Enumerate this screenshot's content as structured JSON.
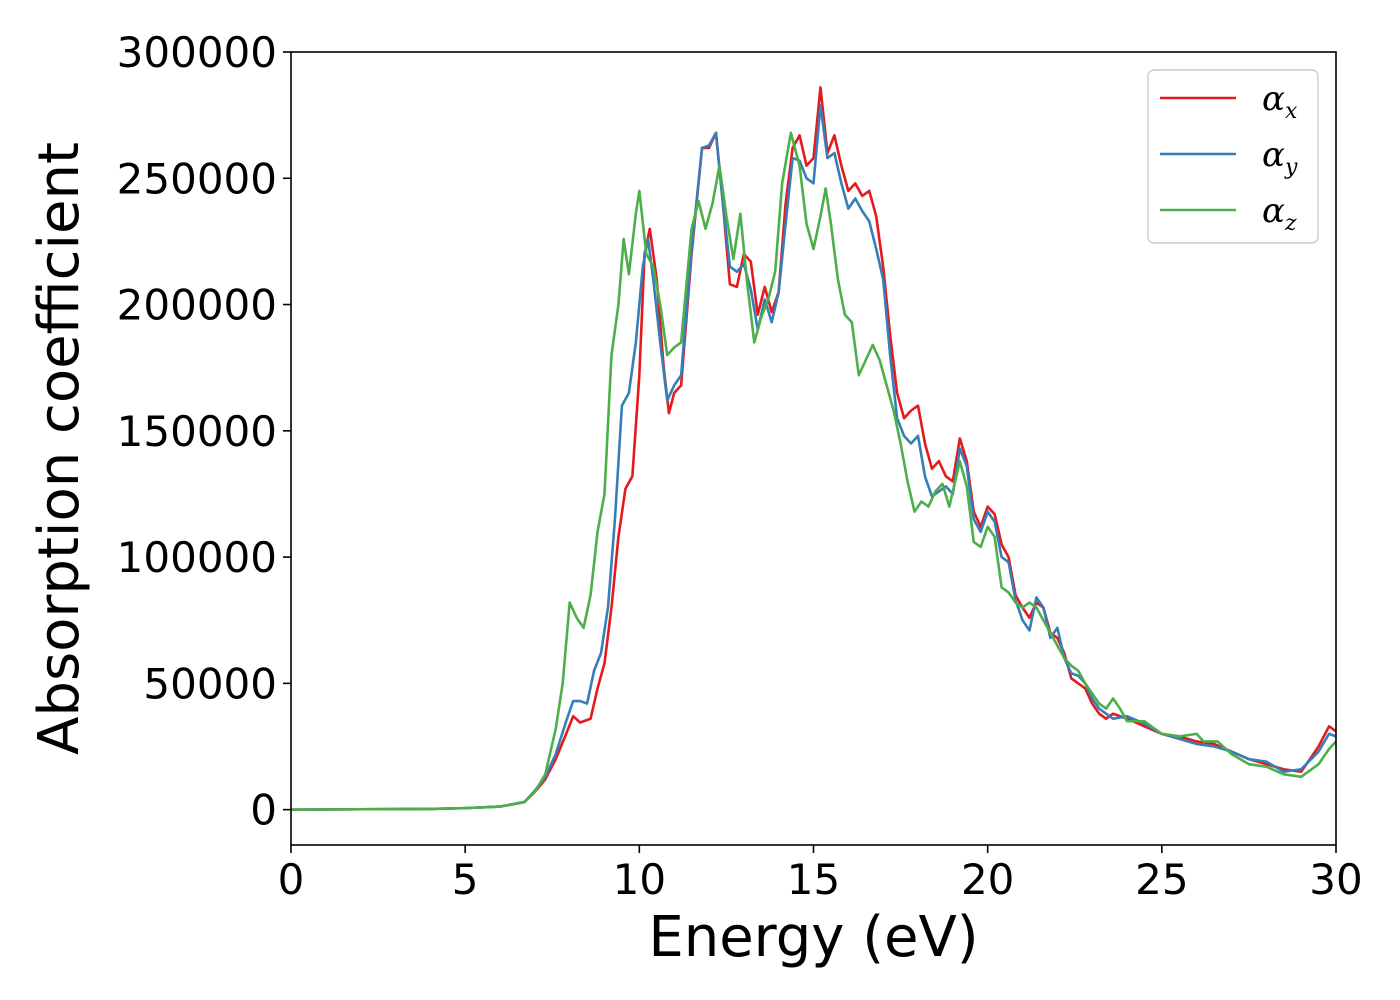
{
  "chart_data": {
    "type": "line",
    "title": "",
    "xlabel": "Energy (eV)",
    "ylabel": "Absorption coefficient",
    "xlim": [
      0,
      30
    ],
    "ylim": [
      -14000,
      300000
    ],
    "xticks": [
      0,
      5,
      10,
      15,
      20,
      25,
      30
    ],
    "yticks": [
      0,
      50000,
      100000,
      150000,
      200000,
      250000,
      300000
    ],
    "xtick_labels": [
      "0",
      "5",
      "10",
      "15",
      "20",
      "25",
      "30"
    ],
    "ytick_labels": [
      "0",
      "50000",
      "100000",
      "150000",
      "200000",
      "250000",
      "300000"
    ],
    "grid": false,
    "legend_position": "top-right",
    "series": [
      {
        "name": "αx",
        "symbol": "α",
        "subscript": "x",
        "color": "#e41a1c",
        "points": [
          [
            0,
            0
          ],
          [
            2,
            150
          ],
          [
            4,
            300
          ],
          [
            5,
            600
          ],
          [
            6,
            1200
          ],
          [
            6.7,
            3000
          ],
          [
            7,
            7000
          ],
          [
            7.3,
            12000
          ],
          [
            7.6,
            20000
          ],
          [
            7.9,
            30000
          ],
          [
            8.1,
            37000
          ],
          [
            8.3,
            34500
          ],
          [
            8.6,
            36000
          ],
          [
            8.8,
            48000
          ],
          [
            9,
            58000
          ],
          [
            9.2,
            80000
          ],
          [
            9.4,
            108000
          ],
          [
            9.6,
            127000
          ],
          [
            9.8,
            132000
          ],
          [
            10,
            172000
          ],
          [
            10.15,
            220000
          ],
          [
            10.3,
            230000
          ],
          [
            10.5,
            210000
          ],
          [
            10.7,
            175000
          ],
          [
            10.85,
            157000
          ],
          [
            11,
            165000
          ],
          [
            11.2,
            168000
          ],
          [
            11.5,
            220000
          ],
          [
            11.8,
            262000
          ],
          [
            12,
            262000
          ],
          [
            12.2,
            268000
          ],
          [
            12.4,
            240000
          ],
          [
            12.6,
            208000
          ],
          [
            12.8,
            207000
          ],
          [
            13,
            220000
          ],
          [
            13.2,
            217000
          ],
          [
            13.4,
            196000
          ],
          [
            13.6,
            207000
          ],
          [
            13.8,
            197000
          ],
          [
            14,
            205000
          ],
          [
            14.2,
            240000
          ],
          [
            14.4,
            262000
          ],
          [
            14.6,
            267000
          ],
          [
            14.8,
            255000
          ],
          [
            15,
            258000
          ],
          [
            15.2,
            286000
          ],
          [
            15.4,
            260000
          ],
          [
            15.6,
            267000
          ],
          [
            15.8,
            255000
          ],
          [
            16,
            245000
          ],
          [
            16.2,
            248000
          ],
          [
            16.4,
            243000
          ],
          [
            16.6,
            245000
          ],
          [
            16.8,
            235000
          ],
          [
            17,
            215000
          ],
          [
            17.2,
            188000
          ],
          [
            17.4,
            165000
          ],
          [
            17.6,
            155000
          ],
          [
            17.8,
            158000
          ],
          [
            18,
            160000
          ],
          [
            18.2,
            145000
          ],
          [
            18.4,
            135000
          ],
          [
            18.6,
            138000
          ],
          [
            18.8,
            132000
          ],
          [
            19,
            130000
          ],
          [
            19.2,
            147000
          ],
          [
            19.4,
            138000
          ],
          [
            19.6,
            118000
          ],
          [
            19.8,
            112000
          ],
          [
            20,
            120000
          ],
          [
            20.2,
            117000
          ],
          [
            20.4,
            105000
          ],
          [
            20.6,
            100000
          ],
          [
            20.8,
            85000
          ],
          [
            21,
            80000
          ],
          [
            21.2,
            76000
          ],
          [
            21.4,
            82000
          ],
          [
            21.6,
            80000
          ],
          [
            21.8,
            70000
          ],
          [
            22,
            68000
          ],
          [
            22.2,
            62000
          ],
          [
            22.4,
            52000
          ],
          [
            22.6,
            50000
          ],
          [
            22.8,
            48000
          ],
          [
            23,
            42000
          ],
          [
            23.2,
            38000
          ],
          [
            23.4,
            36000
          ],
          [
            23.6,
            38000
          ],
          [
            24,
            36000
          ],
          [
            24.5,
            33000
          ],
          [
            25,
            30000
          ],
          [
            25.5,
            29000
          ],
          [
            26,
            27000
          ],
          [
            26.5,
            26000
          ],
          [
            27,
            23000
          ],
          [
            27.5,
            20000
          ],
          [
            28,
            18000
          ],
          [
            28.5,
            16000
          ],
          [
            29,
            15000
          ],
          [
            29.5,
            25000
          ],
          [
            29.8,
            33000
          ],
          [
            30,
            31000
          ]
        ]
      },
      {
        "name": "αy",
        "symbol": "α",
        "subscript": "y",
        "color": "#377eb8",
        "points": [
          [
            0,
            0
          ],
          [
            2,
            150
          ],
          [
            4,
            300
          ],
          [
            5,
            600
          ],
          [
            6,
            1200
          ],
          [
            6.7,
            3000
          ],
          [
            7,
            7500
          ],
          [
            7.3,
            13000
          ],
          [
            7.6,
            22000
          ],
          [
            7.9,
            35000
          ],
          [
            8.1,
            43000
          ],
          [
            8.3,
            43000
          ],
          [
            8.5,
            42000
          ],
          [
            8.7,
            55000
          ],
          [
            8.9,
            62000
          ],
          [
            9.1,
            80000
          ],
          [
            9.3,
            115000
          ],
          [
            9.5,
            160000
          ],
          [
            9.7,
            165000
          ],
          [
            9.9,
            185000
          ],
          [
            10.1,
            215000
          ],
          [
            10.25,
            226000
          ],
          [
            10.4,
            210000
          ],
          [
            10.6,
            185000
          ],
          [
            10.8,
            162000
          ],
          [
            11,
            168000
          ],
          [
            11.2,
            172000
          ],
          [
            11.5,
            222000
          ],
          [
            11.8,
            262000
          ],
          [
            12,
            263000
          ],
          [
            12.2,
            268000
          ],
          [
            12.4,
            240000
          ],
          [
            12.6,
            215000
          ],
          [
            12.8,
            213000
          ],
          [
            13,
            216000
          ],
          [
            13.2,
            206000
          ],
          [
            13.4,
            190000
          ],
          [
            13.6,
            202000
          ],
          [
            13.8,
            193000
          ],
          [
            14,
            205000
          ],
          [
            14.2,
            232000
          ],
          [
            14.4,
            258000
          ],
          [
            14.6,
            257000
          ],
          [
            14.8,
            250000
          ],
          [
            15,
            248000
          ],
          [
            15.2,
            279000
          ],
          [
            15.4,
            258000
          ],
          [
            15.6,
            260000
          ],
          [
            15.8,
            248000
          ],
          [
            16,
            238000
          ],
          [
            16.2,
            242000
          ],
          [
            16.4,
            237000
          ],
          [
            16.6,
            233000
          ],
          [
            16.8,
            222000
          ],
          [
            17,
            210000
          ],
          [
            17.2,
            180000
          ],
          [
            17.4,
            155000
          ],
          [
            17.6,
            148000
          ],
          [
            17.8,
            145000
          ],
          [
            18,
            148000
          ],
          [
            18.2,
            132000
          ],
          [
            18.4,
            124000
          ],
          [
            18.6,
            126000
          ],
          [
            18.8,
            128000
          ],
          [
            19,
            125000
          ],
          [
            19.2,
            143000
          ],
          [
            19.4,
            136000
          ],
          [
            19.6,
            115000
          ],
          [
            19.8,
            110000
          ],
          [
            20,
            118000
          ],
          [
            20.2,
            114000
          ],
          [
            20.4,
            100000
          ],
          [
            20.6,
            98000
          ],
          [
            20.8,
            83000
          ],
          [
            21,
            75000
          ],
          [
            21.2,
            71000
          ],
          [
            21.4,
            84000
          ],
          [
            21.6,
            80000
          ],
          [
            21.8,
            68000
          ],
          [
            22,
            72000
          ],
          [
            22.2,
            60000
          ],
          [
            22.4,
            54000
          ],
          [
            22.6,
            53000
          ],
          [
            22.8,
            50000
          ],
          [
            23,
            44000
          ],
          [
            23.2,
            40000
          ],
          [
            23.4,
            38000
          ],
          [
            23.6,
            36000
          ],
          [
            24,
            37000
          ],
          [
            24.5,
            34000
          ],
          [
            25,
            30000
          ],
          [
            25.5,
            28000
          ],
          [
            26,
            26000
          ],
          [
            26.5,
            25000
          ],
          [
            27,
            23000
          ],
          [
            27.5,
            20000
          ],
          [
            28,
            19000
          ],
          [
            28.5,
            15000
          ],
          [
            29,
            16000
          ],
          [
            29.5,
            23000
          ],
          [
            29.8,
            30000
          ],
          [
            30,
            29000
          ]
        ]
      },
      {
        "name": "αz",
        "symbol": "α",
        "subscript": "z",
        "color": "#4daf4a",
        "points": [
          [
            0,
            0
          ],
          [
            2,
            150
          ],
          [
            4,
            300
          ],
          [
            5,
            600
          ],
          [
            6,
            1200
          ],
          [
            6.7,
            3000
          ],
          [
            7,
            7000
          ],
          [
            7.3,
            14000
          ],
          [
            7.6,
            32000
          ],
          [
            7.8,
            50000
          ],
          [
            8,
            82000
          ],
          [
            8.2,
            76000
          ],
          [
            8.4,
            72000
          ],
          [
            8.6,
            85000
          ],
          [
            8.8,
            110000
          ],
          [
            9,
            125000
          ],
          [
            9.2,
            180000
          ],
          [
            9.4,
            200000
          ],
          [
            9.55,
            226000
          ],
          [
            9.7,
            212000
          ],
          [
            9.9,
            236000
          ],
          [
            10,
            245000
          ],
          [
            10.2,
            220000
          ],
          [
            10.4,
            215000
          ],
          [
            10.6,
            200000
          ],
          [
            10.8,
            180000
          ],
          [
            11,
            183000
          ],
          [
            11.2,
            185000
          ],
          [
            11.5,
            230000
          ],
          [
            11.7,
            241000
          ],
          [
            11.9,
            230000
          ],
          [
            12.1,
            240000
          ],
          [
            12.3,
            255000
          ],
          [
            12.5,
            235000
          ],
          [
            12.7,
            218000
          ],
          [
            12.9,
            236000
          ],
          [
            13.1,
            208000
          ],
          [
            13.3,
            185000
          ],
          [
            13.5,
            195000
          ],
          [
            13.7,
            202000
          ],
          [
            13.9,
            213000
          ],
          [
            14.1,
            248000
          ],
          [
            14.35,
            268000
          ],
          [
            14.6,
            255000
          ],
          [
            14.8,
            232000
          ],
          [
            15,
            222000
          ],
          [
            15.2,
            235000
          ],
          [
            15.35,
            246000
          ],
          [
            15.5,
            232000
          ],
          [
            15.7,
            210000
          ],
          [
            15.9,
            196000
          ],
          [
            16.1,
            193000
          ],
          [
            16.3,
            172000
          ],
          [
            16.5,
            178000
          ],
          [
            16.7,
            184000
          ],
          [
            16.9,
            178000
          ],
          [
            17.1,
            168000
          ],
          [
            17.3,
            158000
          ],
          [
            17.5,
            145000
          ],
          [
            17.7,
            130000
          ],
          [
            17.9,
            118000
          ],
          [
            18.1,
            122000
          ],
          [
            18.3,
            120000
          ],
          [
            18.5,
            126000
          ],
          [
            18.7,
            129000
          ],
          [
            18.9,
            120000
          ],
          [
            19.2,
            138000
          ],
          [
            19.4,
            128000
          ],
          [
            19.6,
            106000
          ],
          [
            19.8,
            104000
          ],
          [
            20,
            112000
          ],
          [
            20.2,
            108000
          ],
          [
            20.4,
            88000
          ],
          [
            20.6,
            86000
          ],
          [
            20.8,
            82000
          ],
          [
            21,
            80000
          ],
          [
            21.2,
            82000
          ],
          [
            21.4,
            80000
          ],
          [
            21.6,
            75000
          ],
          [
            21.8,
            70000
          ],
          [
            22,
            65000
          ],
          [
            22.2,
            60000
          ],
          [
            22.4,
            57000
          ],
          [
            22.6,
            55000
          ],
          [
            22.8,
            50000
          ],
          [
            23,
            46000
          ],
          [
            23.2,
            42000
          ],
          [
            23.4,
            40000
          ],
          [
            23.6,
            44000
          ],
          [
            23.8,
            40000
          ],
          [
            24,
            35000
          ],
          [
            24.5,
            35000
          ],
          [
            25,
            30000
          ],
          [
            25.5,
            29000
          ],
          [
            26,
            30000
          ],
          [
            26.2,
            27000
          ],
          [
            26.6,
            27000
          ],
          [
            27,
            22000
          ],
          [
            27.5,
            18000
          ],
          [
            28,
            17000
          ],
          [
            28.5,
            14000
          ],
          [
            29,
            13000
          ],
          [
            29.5,
            18000
          ],
          [
            29.8,
            24000
          ],
          [
            30,
            27000
          ]
        ]
      }
    ]
  }
}
